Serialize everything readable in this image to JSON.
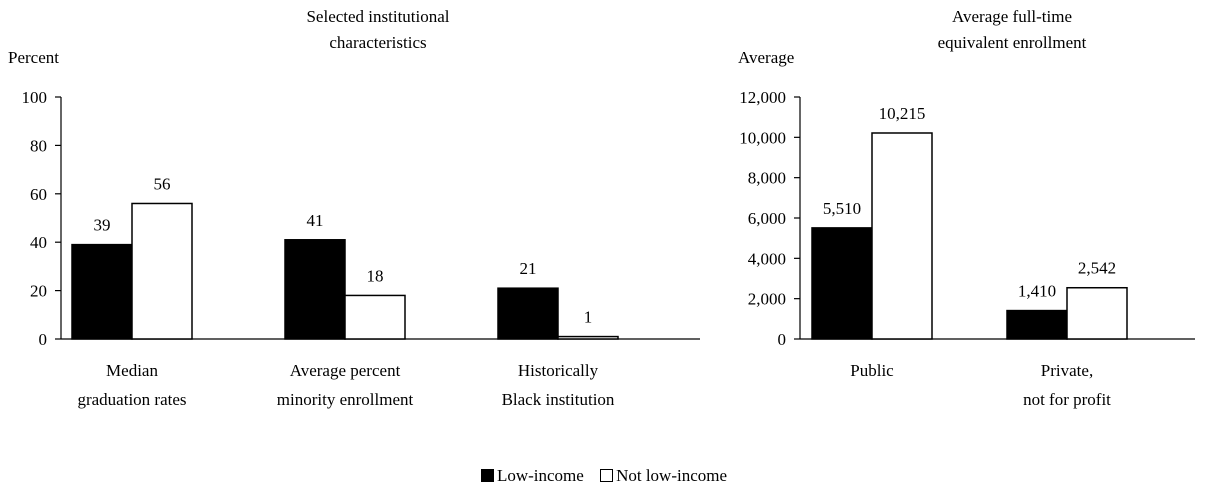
{
  "legend": {
    "low_income": "Low-income",
    "not_low_income": "Not low-income"
  },
  "colors": {
    "low_income": "#000000",
    "not_low_income": "#ffffff"
  },
  "chart_data": [
    {
      "type": "bar",
      "title": "Selected institutional characteristics",
      "ylabel": "Percent",
      "ylim": [
        0,
        100
      ],
      "yticks": [
        "0",
        "20",
        "40",
        "60",
        "80",
        "100"
      ],
      "categories": [
        "Median graduation rates",
        "Average percent minority enrollment",
        "Historically Black institution"
      ],
      "series": [
        {
          "name": "Low-income",
          "values": [
            39,
            41,
            21
          ],
          "labels": [
            "39",
            "41",
            "21"
          ]
        },
        {
          "name": "Not low-income",
          "values": [
            56,
            18,
            1
          ],
          "labels": [
            "56",
            "18",
            "1"
          ]
        }
      ],
      "grid": false,
      "legend_position": "bottom"
    },
    {
      "type": "bar",
      "title": "Average full-time equivalent enrollment",
      "ylabel": "Average",
      "ylim": [
        0,
        12000
      ],
      "yticks": [
        "0",
        "2,000",
        "4,000",
        "6,000",
        "8,000",
        "10,000",
        "12,000"
      ],
      "categories": [
        "Public",
        "Private, not for profit"
      ],
      "series": [
        {
          "name": "Low-income",
          "values": [
            5510,
            1410
          ],
          "labels": [
            "5,510",
            "1,410"
          ]
        },
        {
          "name": "Not low-income",
          "values": [
            10215,
            2542
          ],
          "labels": [
            "10,215",
            "2,542"
          ]
        }
      ],
      "grid": false,
      "legend_position": "bottom"
    }
  ]
}
